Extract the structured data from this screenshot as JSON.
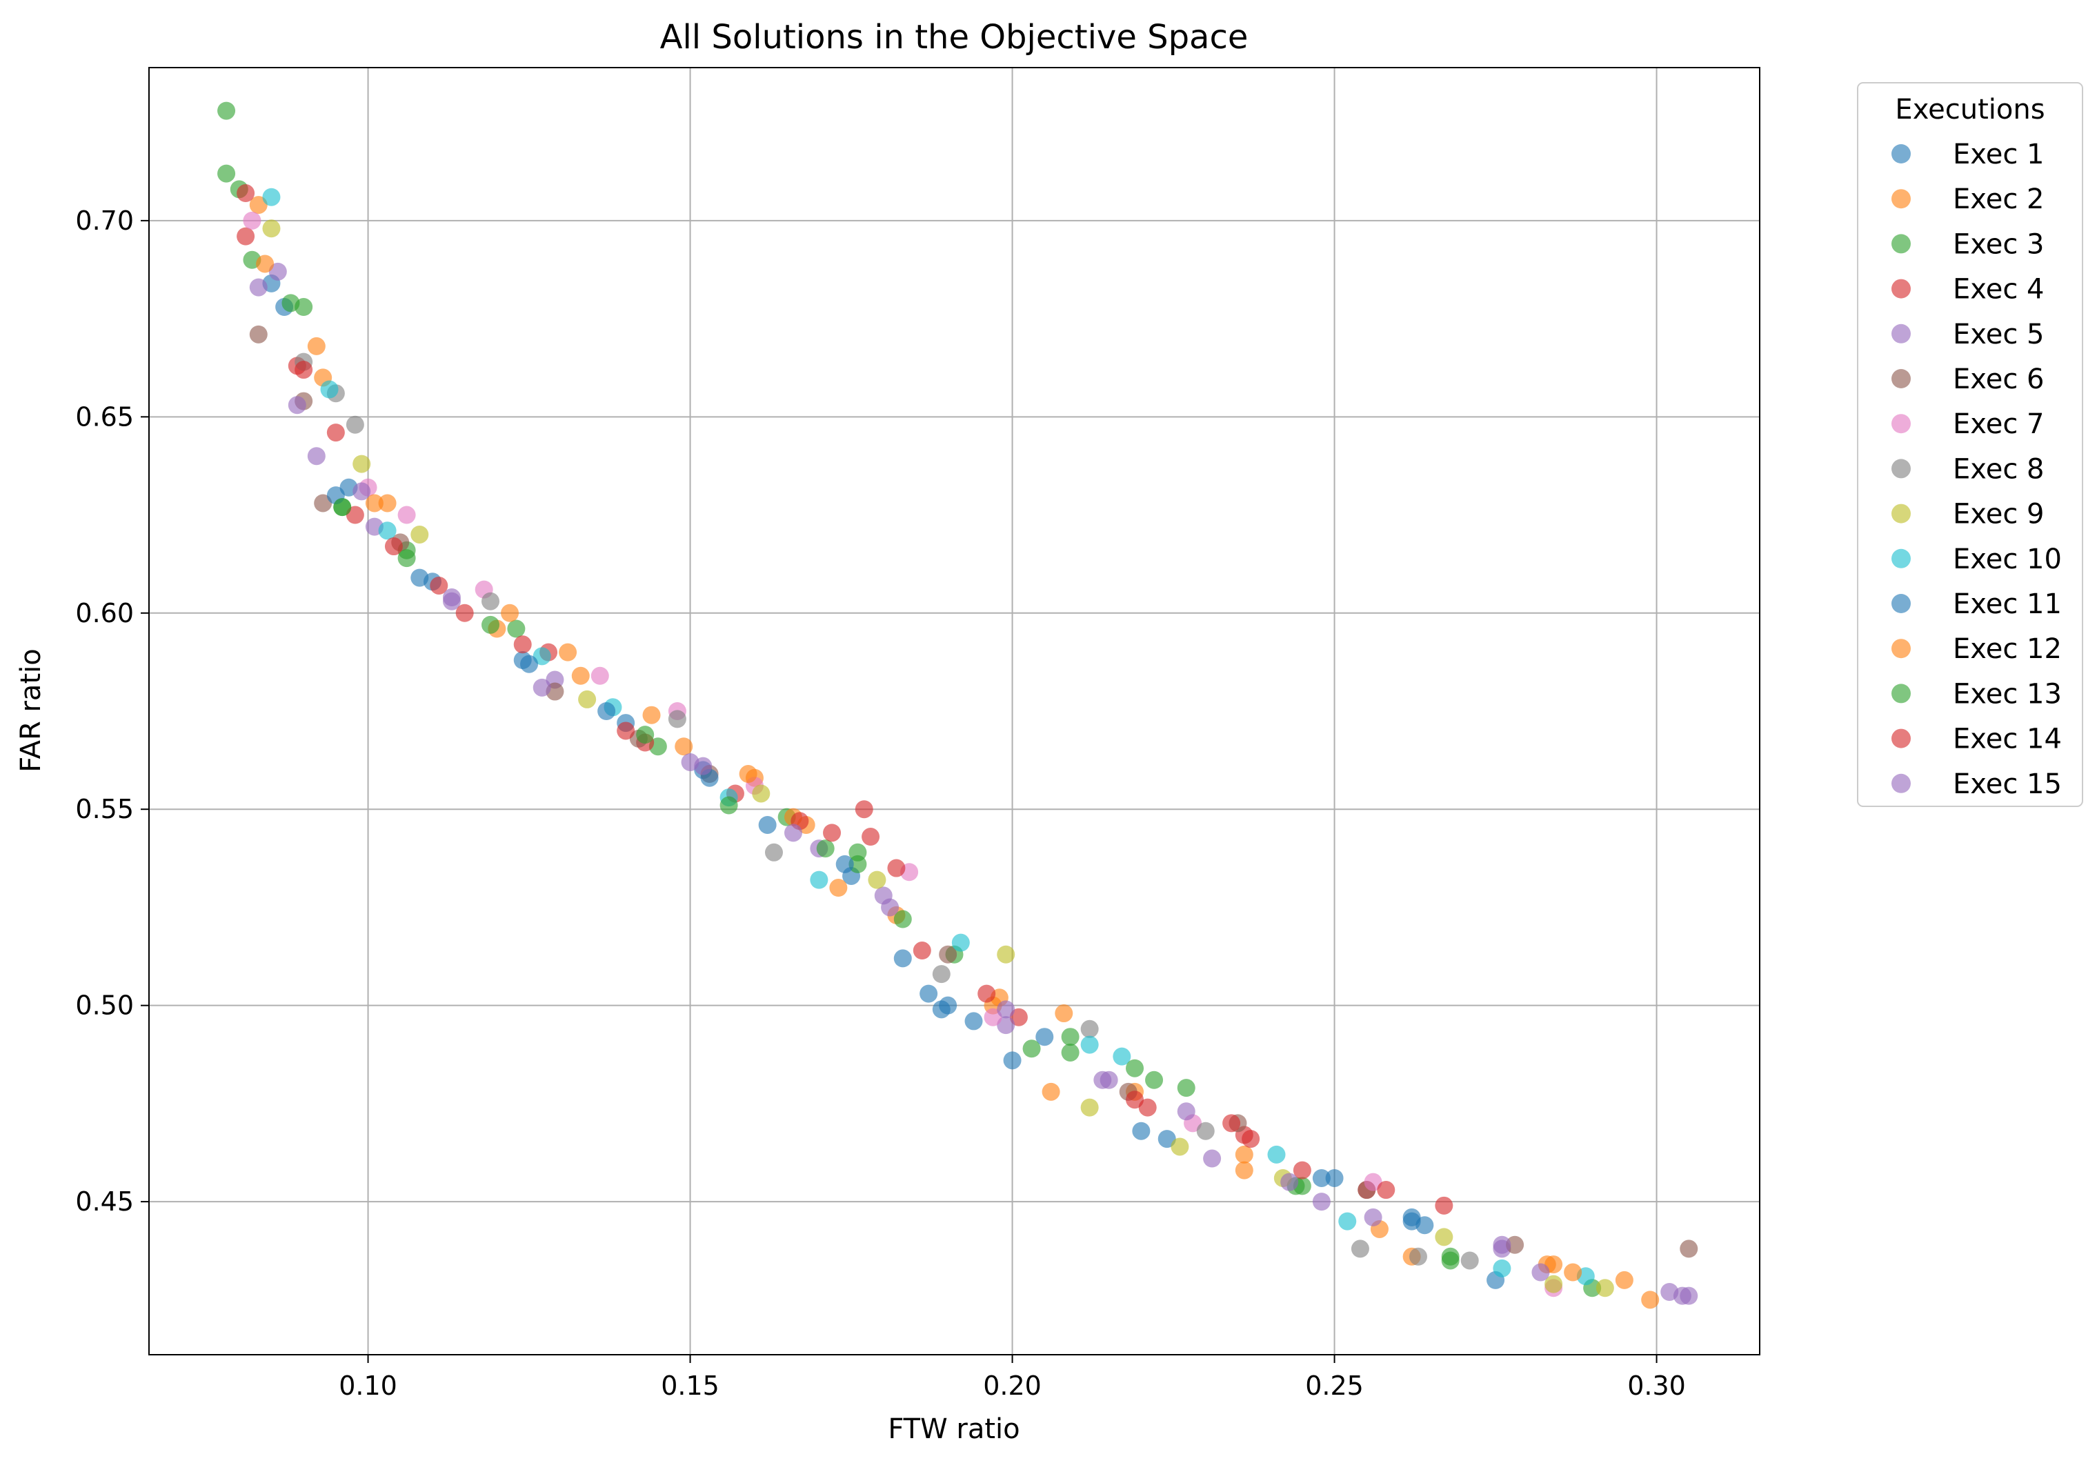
{
  "chart_data": {
    "type": "scatter",
    "title": "All Solutions in the Objective Space",
    "xlabel": "FTW ratio",
    "ylabel": "FAR ratio",
    "xlim": [
      0.066,
      0.316
    ],
    "ylim": [
      0.411,
      0.739
    ],
    "xticks": [
      0.1,
      0.15,
      0.2,
      0.25,
      0.3
    ],
    "xtick_labels": [
      "0.10",
      "0.15",
      "0.20",
      "0.25",
      "0.30"
    ],
    "yticks": [
      0.45,
      0.5,
      0.55,
      0.6,
      0.65,
      0.7
    ],
    "ytick_labels": [
      "0.45",
      "0.50",
      "0.55",
      "0.60",
      "0.65",
      "0.70"
    ],
    "grid": true,
    "legend": {
      "title": "Executions",
      "placement": "outside-right-top"
    },
    "series": [
      {
        "name": "Exec 1",
        "color": "#1f77b4",
        "x": [
          0.085,
          0.097,
          0.11,
          0.124,
          0.14,
          0.152,
          0.162,
          0.175,
          0.183,
          0.189,
          0.205,
          0.224,
          0.25,
          0.262,
          0.275
        ],
        "y": [
          0.684,
          0.632,
          0.608,
          0.588,
          0.572,
          0.56,
          0.546,
          0.533,
          0.512,
          0.499,
          0.492,
          0.466,
          0.456,
          0.446,
          0.43
        ]
      },
      {
        "name": "Exec 2",
        "color": "#ff7f0e",
        "x": [
          0.083,
          0.093,
          0.103,
          0.12,
          0.133,
          0.149,
          0.16,
          0.168,
          0.182,
          0.197,
          0.206,
          0.219,
          0.236,
          0.262,
          0.284,
          0.299
        ],
        "y": [
          0.704,
          0.66,
          0.628,
          0.596,
          0.584,
          0.566,
          0.558,
          0.546,
          0.523,
          0.5,
          0.478,
          0.478,
          0.462,
          0.436,
          0.434,
          0.425
        ]
      },
      {
        "name": "Exec 3",
        "color": "#2ca02c",
        "x": [
          0.078,
          0.082,
          0.09,
          0.096,
          0.106,
          0.123,
          0.145,
          0.165,
          0.176,
          0.191,
          0.209,
          0.222,
          0.244,
          0.268,
          0.29
        ],
        "y": [
          0.728,
          0.69,
          0.678,
          0.627,
          0.616,
          0.596,
          0.566,
          0.548,
          0.536,
          0.513,
          0.492,
          0.481,
          0.454,
          0.436,
          0.428
        ]
      },
      {
        "name": "Exec 4",
        "color": "#d62728",
        "x": [
          0.081,
          0.089,
          0.098,
          0.111,
          0.128,
          0.143,
          0.157,
          0.177,
          0.178,
          0.186,
          0.201,
          0.221,
          0.236,
          0.255,
          0.267
        ],
        "y": [
          0.696,
          0.663,
          0.625,
          0.607,
          0.59,
          0.567,
          0.554,
          0.55,
          0.543,
          0.514,
          0.497,
          0.474,
          0.467,
          0.453,
          0.449
        ]
      },
      {
        "name": "Exec 5",
        "color": "#9467bd",
        "x": [
          0.086,
          0.092,
          0.101,
          0.113,
          0.129,
          0.15,
          0.17,
          0.18,
          0.199,
          0.215,
          0.231,
          0.248,
          0.276,
          0.302,
          0.305
        ],
        "y": [
          0.687,
          0.64,
          0.622,
          0.603,
          0.583,
          0.562,
          0.54,
          0.528,
          0.495,
          0.481,
          0.461,
          0.45,
          0.438,
          0.427,
          0.426
        ]
      },
      {
        "name": "Exec 6",
        "color": "#8c564b",
        "x": [
          0.083,
          0.09,
          0.093,
          0.105,
          0.129,
          0.142,
          0.153,
          0.19,
          0.218,
          0.235,
          0.255,
          0.278,
          0.305
        ],
        "y": [
          0.671,
          0.654,
          0.628,
          0.618,
          0.58,
          0.568,
          0.559,
          0.513,
          0.478,
          0.47,
          0.453,
          0.439,
          0.438
        ]
      },
      {
        "name": "Exec 7",
        "color": "#e377c2",
        "x": [
          0.082,
          0.1,
          0.106,
          0.118,
          0.136,
          0.148,
          0.16,
          0.184,
          0.197,
          0.228,
          0.256,
          0.284
        ],
        "y": [
          0.7,
          0.632,
          0.625,
          0.606,
          0.584,
          0.575,
          0.556,
          0.534,
          0.497,
          0.47,
          0.455,
          0.428
        ]
      },
      {
        "name": "Exec 8",
        "color": "#7f7f7f",
        "x": [
          0.09,
          0.095,
          0.098,
          0.119,
          0.148,
          0.163,
          0.189,
          0.212,
          0.23,
          0.254,
          0.263,
          0.271
        ],
        "y": [
          0.664,
          0.656,
          0.648,
          0.603,
          0.573,
          0.539,
          0.508,
          0.494,
          0.468,
          0.438,
          0.436,
          0.435
        ]
      },
      {
        "name": "Exec 9",
        "color": "#bcbd22",
        "x": [
          0.085,
          0.099,
          0.108,
          0.134,
          0.161,
          0.179,
          0.199,
          0.212,
          0.226,
          0.242,
          0.267,
          0.284,
          0.292
        ],
        "y": [
          0.698,
          0.638,
          0.62,
          0.578,
          0.554,
          0.532,
          0.513,
          0.474,
          0.464,
          0.456,
          0.441,
          0.429,
          0.428
        ]
      },
      {
        "name": "Exec 10",
        "color": "#17becf",
        "x": [
          0.085,
          0.094,
          0.103,
          0.127,
          0.138,
          0.156,
          0.17,
          0.192,
          0.212,
          0.217,
          0.241,
          0.252,
          0.276,
          0.289
        ],
        "y": [
          0.706,
          0.657,
          0.621,
          0.589,
          0.576,
          0.553,
          0.532,
          0.516,
          0.49,
          0.487,
          0.462,
          0.445,
          0.433,
          0.431
        ]
      },
      {
        "name": "Exec 11",
        "color": "#1f77b4",
        "x": [
          0.087,
          0.095,
          0.108,
          0.125,
          0.137,
          0.153,
          0.174,
          0.187,
          0.19,
          0.194,
          0.2,
          0.22,
          0.248,
          0.262,
          0.264
        ],
        "y": [
          0.678,
          0.63,
          0.609,
          0.587,
          0.575,
          0.558,
          0.536,
          0.503,
          0.5,
          0.496,
          0.486,
          0.468,
          0.456,
          0.445,
          0.444
        ]
      },
      {
        "name": "Exec 12",
        "color": "#ff7f0e",
        "x": [
          0.084,
          0.092,
          0.101,
          0.122,
          0.131,
          0.144,
          0.159,
          0.166,
          0.173,
          0.198,
          0.208,
          0.236,
          0.257,
          0.283,
          0.287,
          0.295
        ],
        "y": [
          0.689,
          0.668,
          0.628,
          0.6,
          0.59,
          0.574,
          0.559,
          0.548,
          0.53,
          0.502,
          0.498,
          0.458,
          0.443,
          0.434,
          0.432,
          0.43
        ]
      },
      {
        "name": "Exec 13",
        "color": "#2ca02c",
        "x": [
          0.078,
          0.08,
          0.088,
          0.096,
          0.106,
          0.119,
          0.143,
          0.156,
          0.171,
          0.176,
          0.183,
          0.203,
          0.209,
          0.219,
          0.227,
          0.245,
          0.268
        ],
        "y": [
          0.712,
          0.708,
          0.679,
          0.627,
          0.614,
          0.597,
          0.569,
          0.551,
          0.54,
          0.539,
          0.522,
          0.489,
          0.488,
          0.484,
          0.479,
          0.454,
          0.435
        ]
      },
      {
        "name": "Exec 14",
        "color": "#d62728",
        "x": [
          0.081,
          0.09,
          0.095,
          0.104,
          0.115,
          0.124,
          0.14,
          0.167,
          0.172,
          0.182,
          0.196,
          0.219,
          0.234,
          0.237,
          0.245,
          0.258
        ],
        "y": [
          0.707,
          0.662,
          0.646,
          0.617,
          0.6,
          0.592,
          0.57,
          0.547,
          0.544,
          0.535,
          0.503,
          0.476,
          0.47,
          0.466,
          0.458,
          0.453
        ]
      },
      {
        "name": "Exec 15",
        "color": "#9467bd",
        "x": [
          0.083,
          0.089,
          0.099,
          0.113,
          0.127,
          0.152,
          0.166,
          0.181,
          0.199,
          0.214,
          0.227,
          0.243,
          0.256,
          0.276,
          0.282,
          0.304
        ],
        "y": [
          0.683,
          0.653,
          0.631,
          0.604,
          0.581,
          0.561,
          0.544,
          0.525,
          0.499,
          0.481,
          0.473,
          0.455,
          0.446,
          0.439,
          0.432,
          0.426
        ]
      }
    ]
  }
}
